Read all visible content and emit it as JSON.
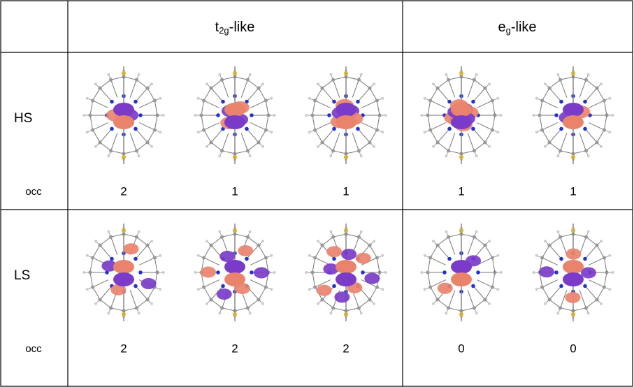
{
  "table": {
    "header": {
      "t2g": {
        "main": "t",
        "sub": "2g",
        "rest": "-like"
      },
      "eg": {
        "main": "e",
        "sub": "g",
        "rest": "-like"
      }
    },
    "rows": [
      {
        "label": "HS",
        "occ_label": "occ",
        "occ": [
          2,
          1,
          1,
          1,
          1
        ]
      },
      {
        "label": "LS",
        "occ_label": "occ",
        "occ": [
          2,
          2,
          2,
          0,
          0
        ]
      }
    ]
  }
}
